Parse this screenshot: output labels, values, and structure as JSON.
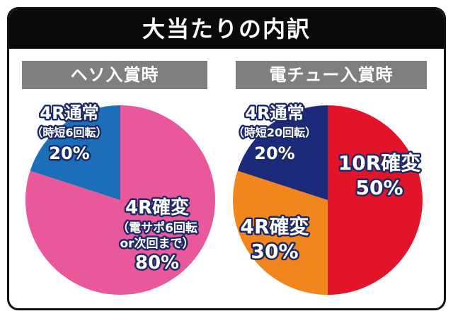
{
  "title": "大当たりの内訳",
  "chart_data": [
    {
      "type": "pie",
      "title": "ヘソ入賞時",
      "slices": [
        {
          "lines": [
            "4R確変",
            "（電サポ6回転",
            "or次回まで）",
            "80%"
          ],
          "value": 80,
          "color": "#e8589a"
        },
        {
          "lines": [
            "4R通常",
            "（時短6回転）",
            "20%"
          ],
          "value": 20,
          "color": "#1a6fb8"
        }
      ]
    },
    {
      "type": "pie",
      "title": "電チュー入賞時",
      "slices": [
        {
          "lines": [
            "10R確変",
            "50%"
          ],
          "value": 50,
          "color": "#e3142a"
        },
        {
          "lines": [
            "4R確変",
            "30%"
          ],
          "value": 30,
          "color": "#f2861e"
        },
        {
          "lines": [
            "4R通常",
            "（時短20回転）",
            "20%"
          ],
          "value": 20,
          "color": "#1c2a7c"
        }
      ]
    }
  ]
}
